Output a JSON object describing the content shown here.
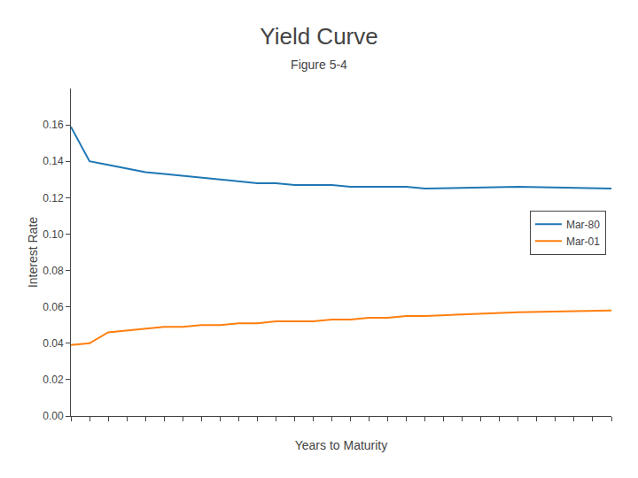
{
  "chart_data": {
    "type": "line",
    "title": "Yield Curve",
    "subtitle": "Figure 5-4",
    "xlabel": "Years to Maturity",
    "ylabel": "Interest Rate",
    "x": [
      1,
      2,
      3,
      4,
      5,
      6,
      7,
      8,
      9,
      10,
      11,
      12,
      13,
      14,
      15,
      16,
      17,
      18,
      19,
      20,
      25,
      30
    ],
    "series": [
      {
        "name": "Mar-80",
        "values": [
          0.159,
          0.14,
          0.138,
          0.136,
          0.134,
          0.133,
          0.132,
          0.131,
          0.13,
          0.129,
          0.128,
          0.128,
          0.127,
          0.127,
          0.127,
          0.126,
          0.126,
          0.126,
          0.126,
          0.125,
          0.126,
          0.125
        ]
      },
      {
        "name": "Mar-01",
        "values": [
          0.039,
          0.04,
          0.046,
          0.047,
          0.048,
          0.049,
          0.049,
          0.05,
          0.05,
          0.051,
          0.051,
          0.052,
          0.052,
          0.052,
          0.053,
          0.053,
          0.054,
          0.054,
          0.055,
          0.055,
          0.057,
          0.058
        ]
      }
    ],
    "xlim": [
      1,
      30
    ],
    "xticks": [
      1,
      2,
      3,
      4,
      5,
      6,
      7,
      8,
      9,
      10,
      11,
      12,
      13,
      14,
      15,
      16,
      17,
      18,
      19,
      20,
      21,
      22,
      23,
      24,
      25,
      26,
      27,
      28,
      29,
      30
    ],
    "ylim": [
      0,
      0.18
    ],
    "yticks": [
      {
        "value": 0,
        "label": "0.00"
      },
      0.02,
      0.04,
      0.06,
      0.08,
      {
        "value": 0.1,
        "label": "0.10"
      },
      0.12,
      0.14,
      0.16
    ],
    "tick_labels": "y",
    "grid": false,
    "legend": "right"
  }
}
